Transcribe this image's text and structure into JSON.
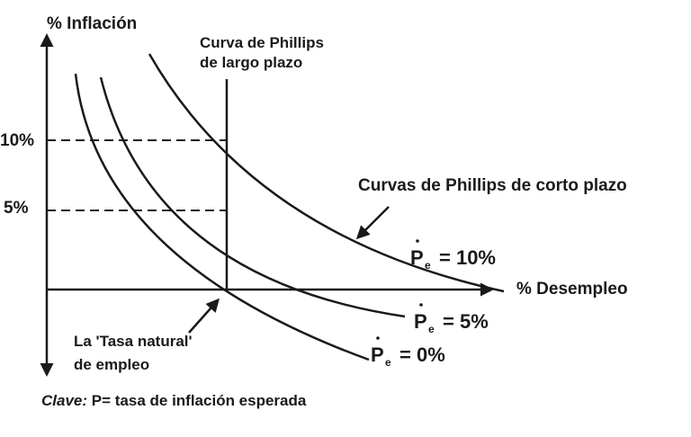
{
  "y_axis_label": "% Inflación",
  "x_axis_label": "% Desempleo",
  "long_run": {
    "line1": "Curva de Phillips",
    "line2": "de largo plazo"
  },
  "short_run_label": "Curvas de Phillips de corto plazo",
  "natural_rate": {
    "line1": "La 'Tasa natural'",
    "line2": "de empleo"
  },
  "ticks": {
    "y10": "10%",
    "y5": "5%"
  },
  "curves": [
    {
      "symbol": "P",
      "subscript": "e",
      "value": "= 10%"
    },
    {
      "symbol": "P",
      "subscript": "e",
      "value": "= 5%"
    },
    {
      "symbol": "P",
      "subscript": "e",
      "value": "= 0%"
    }
  ],
  "key": {
    "label": "Clave:",
    "text": "P= tasa de inflación esperada"
  },
  "colors": {
    "ink": "#1a1a1a",
    "background": "#ffffff"
  }
}
